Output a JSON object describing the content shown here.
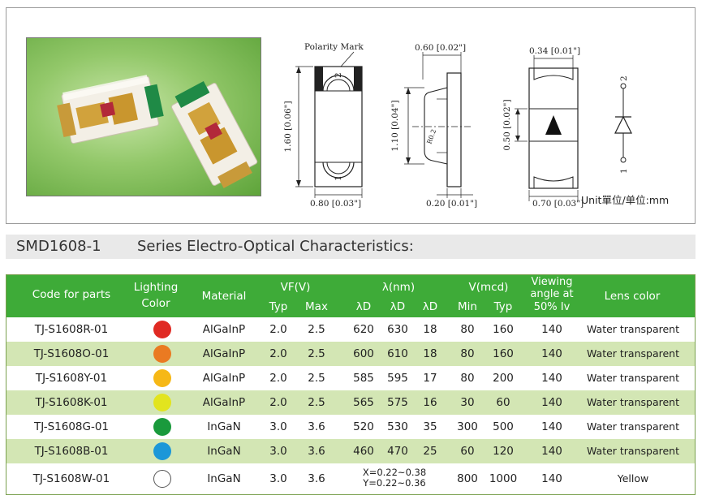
{
  "drawing": {
    "polarity_mark": "Polarity Mark",
    "dim_top_width": "0.60 [0.02\"]",
    "dim_pad_width": "0.34 [0.01\"]",
    "dim_height": "1.60 [0.06\"]",
    "dim_inner_height": "1.10 [0.04\"]",
    "dim_pad_height": "0.50 [0.02\"]",
    "dim_bottom_width": "0.80 [0.03\"]",
    "dim_side_width": "0.20 [0.01\"]",
    "dim_pad_bottom": "0.70 [0.03\"]",
    "pin_top": "2",
    "pin_bottom": "1",
    "radius_label": "R0.2",
    "unit": "Unit單位/单位:mm"
  },
  "title": {
    "series_code": "SMD1608-1",
    "series_text": "Series  Electro-Optical Characteristics:"
  },
  "table": {
    "headers": {
      "code": "Code for parts",
      "lighting_1": "Lighting",
      "lighting_2": "Color",
      "material": "Material",
      "vf": "VF(V)",
      "vf_typ": "Typ",
      "vf_max": "Max",
      "lambda": "λ(nm)",
      "ld1": "λD",
      "ld2": "λD",
      "ld3": "λD",
      "iv": "V(mcd)",
      "iv_min": "Min",
      "iv_typ": "Typ",
      "view_1": "Viewing",
      "view_2": "angle at",
      "view_3": "50% Iv",
      "lens": "Lens color"
    },
    "rows": [
      {
        "code": "TJ-S1608R-01",
        "color": "#e02a23",
        "material": "AlGaInP",
        "vf_typ": "2.0",
        "vf_max": "2.5",
        "ld1": "620",
        "ld2": "630",
        "ld3": "18",
        "iv_min": "80",
        "iv_typ": "160",
        "angle": "140",
        "lens": "Water transparent"
      },
      {
        "code": "TJ-S1608O-01",
        "color": "#ea7a22",
        "material": "AlGaInP",
        "vf_typ": "2.0",
        "vf_max": "2.5",
        "ld1": "600",
        "ld2": "610",
        "ld3": "18",
        "iv_min": "80",
        "iv_typ": "160",
        "angle": "140",
        "lens": "Water transparent"
      },
      {
        "code": "TJ-S1608Y-01",
        "color": "#f6b816",
        "material": "AlGaInP",
        "vf_typ": "2.0",
        "vf_max": "2.5",
        "ld1": "585",
        "ld2": "595",
        "ld3": "17",
        "iv_min": "80",
        "iv_typ": "200",
        "angle": "140",
        "lens": "Water transparent"
      },
      {
        "code": "TJ-S1608K-01",
        "color": "#e2e41e",
        "material": "AlGaInP",
        "vf_typ": "2.0",
        "vf_max": "2.5",
        "ld1": "565",
        "ld2": "575",
        "ld3": "16",
        "iv_min": "30",
        "iv_typ": "60",
        "angle": "140",
        "lens": "Water transparent"
      },
      {
        "code": "TJ-S1608G-01",
        "color": "#1a9a3c",
        "material": "InGaN",
        "vf_typ": "3.0",
        "vf_max": "3.6",
        "ld1": "520",
        "ld2": "530",
        "ld3": "35",
        "iv_min": "300",
        "iv_typ": "500",
        "angle": "140",
        "lens": "Water transparent"
      },
      {
        "code": "TJ-S1608B-01",
        "color": "#1c97d8",
        "material": "InGaN",
        "vf_typ": "3.0",
        "vf_max": "3.6",
        "ld1": "460",
        "ld2": "470",
        "ld3": "25",
        "iv_min": "60",
        "iv_typ": "120",
        "angle": "140",
        "lens": "Water transparent"
      },
      {
        "code": "TJ-S1608W-01",
        "color": "#ffffff",
        "material": "InGaN",
        "vf_typ": "3.0",
        "vf_max": "3.6",
        "chroma_x": "X=0.22~0.38",
        "chroma_y": "Y=0.22~0.36",
        "iv_min": "800",
        "iv_typ": "1000",
        "angle": "140",
        "lens": "Yellow"
      }
    ]
  }
}
